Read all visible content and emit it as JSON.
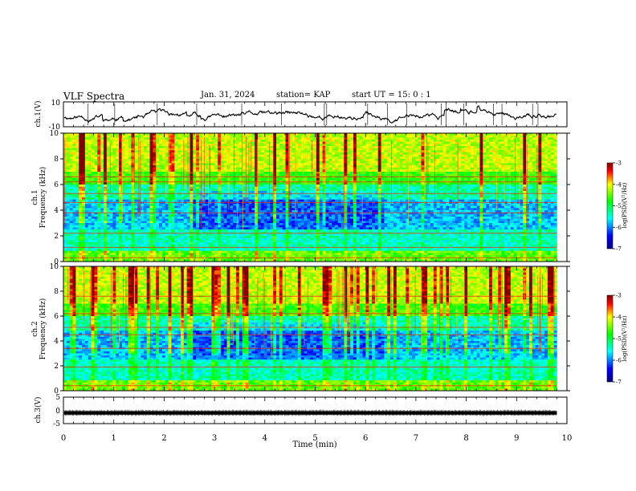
{
  "header": {
    "title": "VLF Spectra",
    "date": "Jan. 31, 2024",
    "station": "station= KAP",
    "start": "start  UT =  15: 0  : 1"
  },
  "chart_data": [
    {
      "type": "line",
      "name": "ch1-waveform",
      "ylabel": "ch.1(V)",
      "ylim": [
        -10,
        10
      ],
      "yticks": [
        "10",
        "-10"
      ],
      "xlim": [
        0,
        10
      ]
    },
    {
      "type": "heatmap",
      "name": "ch1-spectrogram",
      "ylabel_top": "ch.1",
      "ylabel": "Frequency (kHz)",
      "xlim": [
        0,
        10
      ],
      "ylim": [
        0,
        10
      ],
      "yticks": [
        "0",
        "2",
        "4",
        "6",
        "8",
        "10"
      ],
      "data_extent_min": 9.8,
      "strong_lines_khz": [
        0.3,
        1.1,
        2.2,
        3.8,
        4.6,
        5.3,
        6.2,
        6.6
      ],
      "colorbar": {
        "label": "log(PSD)(V²/Hz)",
        "range": [
          -7,
          -3
        ],
        "ticks": [
          "-3",
          "-4",
          "-5",
          "-6",
          "-7"
        ]
      }
    },
    {
      "type": "heatmap",
      "name": "ch2-spectrogram",
      "ylabel_top": "ch.2",
      "ylabel": "Frequency (kHz)",
      "xlim": [
        0,
        10
      ],
      "ylim": [
        0,
        10
      ],
      "yticks": [
        "0",
        "2",
        "4",
        "6",
        "8",
        "10"
      ],
      "data_extent_min": 9.8,
      "strong_lines_khz": [
        0.4,
        1.9,
        3.4,
        4.5,
        5.1,
        6.2,
        7.6
      ],
      "colorbar": {
        "label": "log(PSD)(V²/Hz)",
        "range": [
          -7,
          -3
        ],
        "ticks": [
          "-3",
          "-4",
          "-5",
          "-6",
          "-7"
        ]
      }
    },
    {
      "type": "line",
      "name": "ch3-waveform",
      "ylabel": "ch.3(V)",
      "ylim": [
        -5,
        5
      ],
      "yticks": [
        "5",
        "0",
        "-5"
      ],
      "xlim": [
        0,
        10
      ],
      "xlabel": "Time (min)",
      "xticks": [
        "0",
        "1",
        "2",
        "3",
        "4",
        "5",
        "6",
        "7",
        "8",
        "9",
        "10"
      ]
    }
  ]
}
